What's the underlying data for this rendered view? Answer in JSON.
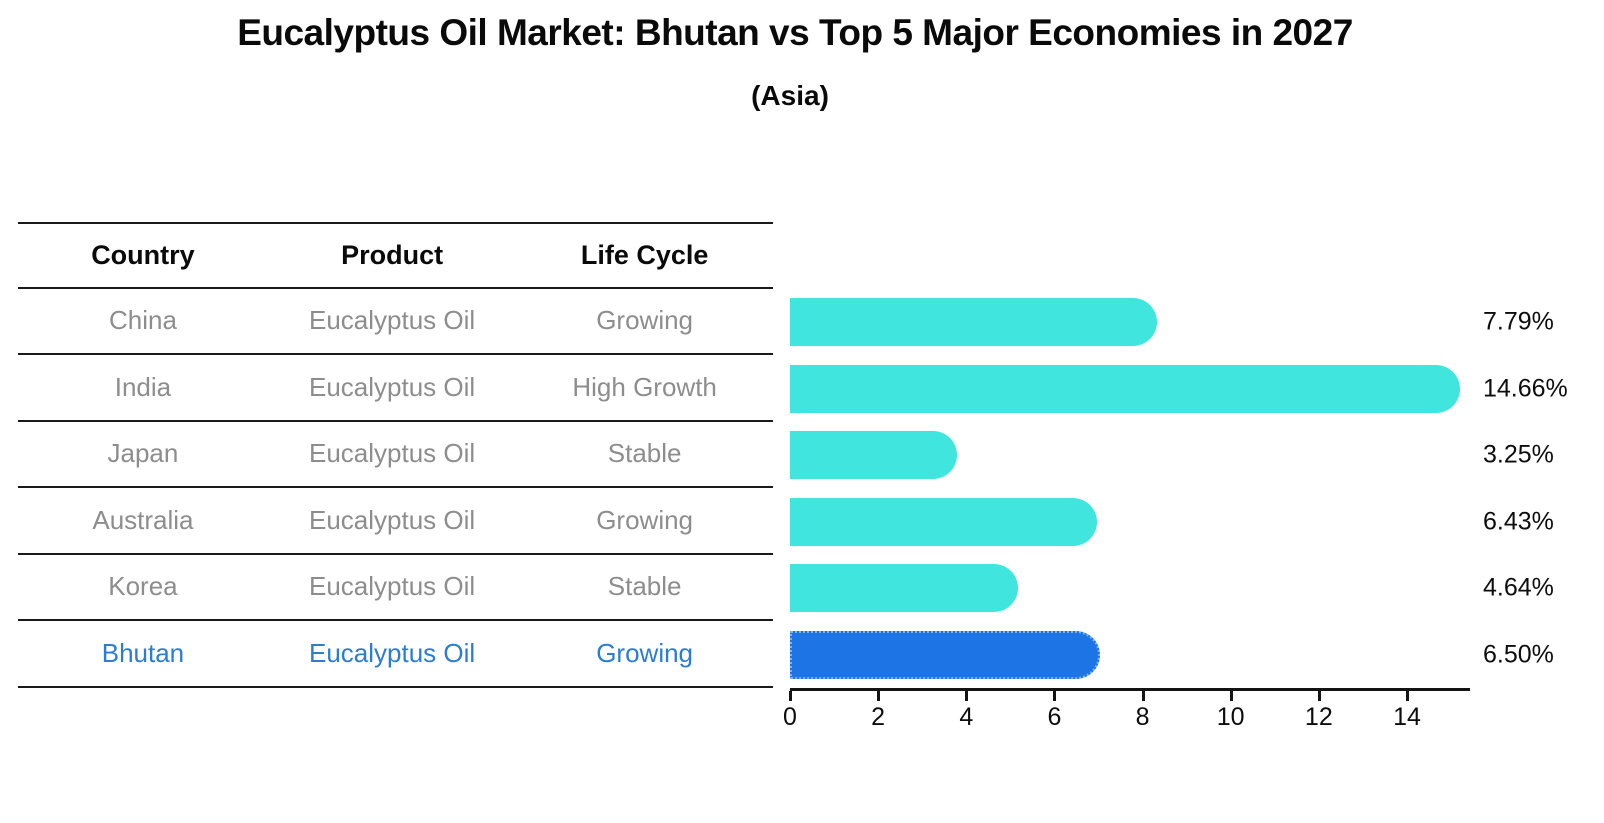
{
  "title": "Eucalyptus Oil Market: Bhutan vs Top 5 Major Economies in 2027",
  "subtitle": "(Asia)",
  "table": {
    "headers": [
      "Country",
      "Product",
      "Life Cycle"
    ],
    "rows": [
      {
        "country": "China",
        "product": "Eucalyptus Oil",
        "life_cycle": "Growing",
        "highlight": false
      },
      {
        "country": "India",
        "product": "Eucalyptus Oil",
        "life_cycle": "High Growth",
        "highlight": false
      },
      {
        "country": "Japan",
        "product": "Eucalyptus Oil",
        "life_cycle": "Stable",
        "highlight": false
      },
      {
        "country": "Australia",
        "product": "Eucalyptus Oil",
        "life_cycle": "Growing",
        "highlight": false
      },
      {
        "country": "Korea",
        "product": "Eucalyptus Oil",
        "life_cycle": "Stable",
        "highlight": false
      },
      {
        "country": "Bhutan",
        "product": "Eucalyptus Oil",
        "life_cycle": "Growing",
        "highlight": true
      }
    ]
  },
  "chart_data": {
    "type": "bar",
    "orientation": "horizontal",
    "title": "Eucalyptus Oil Market: Bhutan vs Top 5 Major Economies in 2027",
    "subtitle": "(Asia)",
    "categories": [
      "China",
      "India",
      "Japan",
      "Australia",
      "Korea",
      "Bhutan"
    ],
    "values": [
      7.79,
      14.66,
      3.25,
      6.43,
      4.64,
      6.5
    ],
    "value_labels": [
      "7.79%",
      "14.66%",
      "3.25%",
      "6.43%",
      "4.64%",
      "6.50%"
    ],
    "xlabel": "",
    "ylabel": "",
    "xlim": [
      0,
      15.43
    ],
    "xticks": [
      0,
      2,
      4,
      6,
      8,
      10,
      12,
      14
    ],
    "grid": false,
    "legend": "none",
    "bar_color": "#40e5de",
    "highlight_bar_color": "#1d74e4",
    "highlight_index": 5,
    "value_label_color": "#0d0d0d",
    "highlight_text_color": "#2b7dd2"
  }
}
